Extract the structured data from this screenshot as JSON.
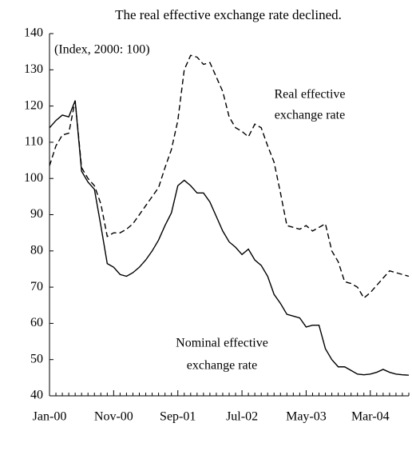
{
  "chart_data": {
    "type": "line",
    "title": "The real effective exchange rate declined.",
    "annotations": {
      "unit": "(Index, 2000: 100)",
      "real": [
        "Real effective",
        "exchange rate"
      ],
      "nominal": [
        "Nominal effective",
        "exchange rate"
      ]
    },
    "categories": [
      "Jan-00",
      null,
      null,
      null,
      null,
      null,
      null,
      null,
      null,
      null,
      "Nov-00",
      null,
      null,
      null,
      null,
      null,
      null,
      null,
      null,
      null,
      "Sep-01",
      null,
      null,
      null,
      null,
      null,
      null,
      null,
      null,
      null,
      "Jul-02",
      null,
      null,
      null,
      null,
      null,
      null,
      null,
      null,
      null,
      "May-03",
      null,
      null,
      null,
      null,
      null,
      null,
      null,
      null,
      null,
      "Mar-04",
      null,
      null,
      null,
      null,
      null,
      null
    ],
    "series": [
      {
        "name": "Nominal effective exchange rate",
        "color": "#000000",
        "dash": "none",
        "values": [
          114,
          116,
          117.5,
          117,
          121.5,
          102,
          99,
          97,
          87,
          76.5,
          75.5,
          73.5,
          73,
          74,
          75.5,
          77.5,
          80,
          83,
          87,
          90.5,
          98,
          99.5,
          98,
          96,
          96,
          93.5,
          89.5,
          85.5,
          82.5,
          81,
          79,
          80.5,
          77.5,
          76,
          73,
          68,
          65.5,
          62.5,
          62,
          61.5,
          59,
          59.5,
          59.5,
          53,
          50,
          48,
          48,
          47,
          46,
          45.8,
          46,
          46.5,
          47.3,
          46.5,
          46,
          45.8,
          45.7
        ]
      },
      {
        "name": "Real effective exchange rate",
        "color": "#000000",
        "dash": "7,4",
        "values": [
          103.5,
          109,
          112,
          112.5,
          121.5,
          103,
          100,
          98,
          93,
          84,
          85,
          85,
          86,
          87.5,
          90,
          92.5,
          95,
          97.5,
          103,
          108,
          116,
          130,
          134,
          133.5,
          131.5,
          132,
          128,
          124,
          117,
          114,
          113,
          111.5,
          115,
          114,
          109,
          104.5,
          96,
          87,
          86.5,
          86,
          87,
          85.5,
          86.5,
          87.5,
          80,
          77,
          71.5,
          71,
          70,
          67,
          68.5,
          70.5,
          72.5,
          74.5,
          74,
          73.5,
          73
        ]
      }
    ],
    "ylim": [
      40,
      140
    ],
    "yticks": [
      40,
      50,
      60,
      70,
      80,
      90,
      100,
      110,
      120,
      130,
      140
    ],
    "grid": false
  }
}
